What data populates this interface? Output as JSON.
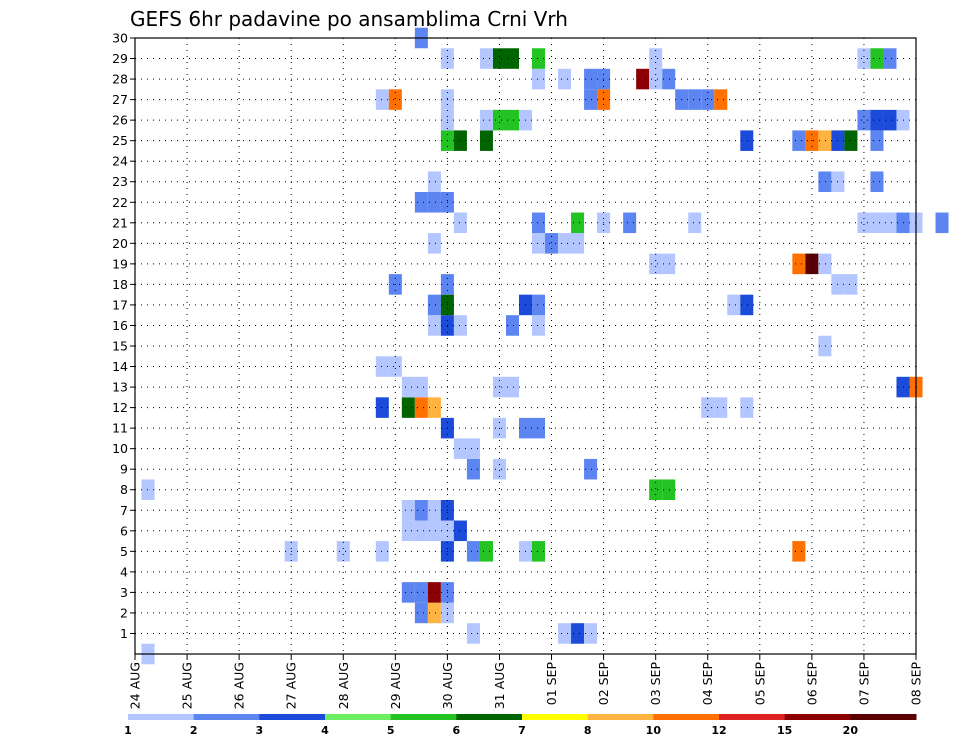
{
  "chart_data": {
    "type": "heatmap",
    "title": "GEFS 6hr padavine po ansamblima Crni Vrh",
    "xlabel": "",
    "ylabel": "",
    "x_tick_labels": [
      "24 AUG",
      "25 AUG",
      "26 AUG",
      "27 AUG",
      "28 AUG",
      "29 AUG",
      "30 AUG",
      "31 AUG",
      "01 SEP",
      "02 SEP",
      "03 SEP",
      "04 SEP",
      "05 SEP",
      "06 SEP",
      "07 SEP",
      "08 SEP"
    ],
    "y_tick_labels": [
      "1",
      "2",
      "3",
      "4",
      "5",
      "6",
      "7",
      "8",
      "9",
      "10",
      "11",
      "12",
      "13",
      "14",
      "15",
      "16",
      "17",
      "18",
      "19",
      "20",
      "21",
      "22",
      "23",
      "24",
      "25",
      "26",
      "27",
      "28",
      "29",
      "30"
    ],
    "xlim_days": [
      0,
      15
    ],
    "ylim_members": [
      0,
      30
    ],
    "grid": true,
    "colorbar": {
      "labels": [
        "1",
        "2",
        "3",
        "4",
        "5",
        "6",
        "7",
        "8",
        "10",
        "12",
        "15",
        "20"
      ],
      "colors": [
        "#b3c6ff",
        "#5c85f2",
        "#1c4bd9",
        "#6cf062",
        "#22c322",
        "#006400",
        "#ffff00",
        "#ffb340",
        "#ff7000",
        "#dd2222",
        "#8b0000",
        "#5a0000"
      ]
    },
    "cells": [
      {
        "m": 0,
        "t": 0.25,
        "v": 1
      },
      {
        "m": 1,
        "t": 6.5,
        "v": 1
      },
      {
        "m": 1,
        "t": 8.25,
        "v": 1
      },
      {
        "m": 1,
        "t": 8.5,
        "v": 3
      },
      {
        "m": 1,
        "t": 8.75,
        "v": 1
      },
      {
        "m": 2,
        "t": 5.5,
        "v": 2
      },
      {
        "m": 2,
        "t": 5.75,
        "v": 8
      },
      {
        "m": 2,
        "t": 6.0,
        "v": 1
      },
      {
        "m": 3,
        "t": 5.25,
        "v": 2
      },
      {
        "m": 3,
        "t": 5.5,
        "v": 2
      },
      {
        "m": 3,
        "t": 5.75,
        "v": 15
      },
      {
        "m": 3,
        "t": 6.0,
        "v": 2
      },
      {
        "m": 5,
        "t": 3.0,
        "v": 1
      },
      {
        "m": 5,
        "t": 4.0,
        "v": 1
      },
      {
        "m": 5,
        "t": 4.75,
        "v": 1
      },
      {
        "m": 5,
        "t": 6.0,
        "v": 3
      },
      {
        "m": 5,
        "t": 6.5,
        "v": 2
      },
      {
        "m": 5,
        "t": 6.75,
        "v": 5
      },
      {
        "m": 5,
        "t": 7.5,
        "v": 1
      },
      {
        "m": 5,
        "t": 7.75,
        "v": 5
      },
      {
        "m": 5,
        "t": 12.75,
        "v": 10
      },
      {
        "m": 6,
        "t": 5.25,
        "v": 1
      },
      {
        "m": 6,
        "t": 5.5,
        "v": 1
      },
      {
        "m": 6,
        "t": 5.75,
        "v": 1
      },
      {
        "m": 6,
        "t": 6.0,
        "v": 1
      },
      {
        "m": 6,
        "t": 6.25,
        "v": 3
      },
      {
        "m": 7,
        "t": 5.25,
        "v": 1
      },
      {
        "m": 7,
        "t": 5.5,
        "v": 2
      },
      {
        "m": 7,
        "t": 5.75,
        "v": 1
      },
      {
        "m": 7,
        "t": 6.0,
        "v": 3
      },
      {
        "m": 8,
        "t": 0.25,
        "v": 1
      },
      {
        "m": 8,
        "t": 10.0,
        "v": 5
      },
      {
        "m": 8,
        "t": 10.25,
        "v": 5
      },
      {
        "m": 9,
        "t": 6.5,
        "v": 2
      },
      {
        "m": 9,
        "t": 7.0,
        "v": 1
      },
      {
        "m": 9,
        "t": 8.75,
        "v": 2
      },
      {
        "m": 10,
        "t": 6.25,
        "v": 1
      },
      {
        "m": 10,
        "t": 6.5,
        "v": 1
      },
      {
        "m": 11,
        "t": 6.0,
        "v": 3
      },
      {
        "m": 11,
        "t": 7.0,
        "v": 1
      },
      {
        "m": 11,
        "t": 7.5,
        "v": 2
      },
      {
        "m": 11,
        "t": 7.75,
        "v": 2
      },
      {
        "m": 12,
        "t": 4.75,
        "v": 3
      },
      {
        "m": 12,
        "t": 5.25,
        "v": 6
      },
      {
        "m": 12,
        "t": 5.5,
        "v": 10
      },
      {
        "m": 12,
        "t": 5.75,
        "v": 8
      },
      {
        "m": 12,
        "t": 11.0,
        "v": 1
      },
      {
        "m": 12,
        "t": 11.25,
        "v": 1
      },
      {
        "m": 12,
        "t": 11.75,
        "v": 1
      },
      {
        "m": 13,
        "t": 5.25,
        "v": 1
      },
      {
        "m": 13,
        "t": 5.5,
        "v": 1
      },
      {
        "m": 13,
        "t": 7.0,
        "v": 1
      },
      {
        "m": 13,
        "t": 7.25,
        "v": 1
      },
      {
        "m": 13,
        "t": 14.75,
        "v": 3
      },
      {
        "m": 13,
        "t": 15.0,
        "v": 10
      },
      {
        "m": 14,
        "t": 4.75,
        "v": 1
      },
      {
        "m": 14,
        "t": 5.0,
        "v": 1
      },
      {
        "m": 15,
        "t": 13.25,
        "v": 1
      },
      {
        "m": 16,
        "t": 5.75,
        "v": 1
      },
      {
        "m": 16,
        "t": 6.0,
        "v": 3
      },
      {
        "m": 16,
        "t": 6.25,
        "v": 1
      },
      {
        "m": 16,
        "t": 7.25,
        "v": 2
      },
      {
        "m": 16,
        "t": 7.75,
        "v": 1
      },
      {
        "m": 17,
        "t": 5.75,
        "v": 2
      },
      {
        "m": 17,
        "t": 6.0,
        "v": 6
      },
      {
        "m": 17,
        "t": 7.5,
        "v": 3
      },
      {
        "m": 17,
        "t": 7.75,
        "v": 2
      },
      {
        "m": 17,
        "t": 11.5,
        "v": 1
      },
      {
        "m": 17,
        "t": 11.75,
        "v": 3
      },
      {
        "m": 18,
        "t": 5.0,
        "v": 2
      },
      {
        "m": 18,
        "t": 6.0,
        "v": 2
      },
      {
        "m": 18,
        "t": 13.5,
        "v": 1
      },
      {
        "m": 18,
        "t": 13.75,
        "v": 1
      },
      {
        "m": 19,
        "t": 10.0,
        "v": 1
      },
      {
        "m": 19,
        "t": 10.25,
        "v": 1
      },
      {
        "m": 19,
        "t": 12.75,
        "v": 10
      },
      {
        "m": 19,
        "t": 13.0,
        "v": 20
      },
      {
        "m": 19,
        "t": 13.25,
        "v": 1
      },
      {
        "m": 20,
        "t": 5.75,
        "v": 1
      },
      {
        "m": 20,
        "t": 7.75,
        "v": 1
      },
      {
        "m": 20,
        "t": 8.0,
        "v": 2
      },
      {
        "m": 20,
        "t": 8.25,
        "v": 1
      },
      {
        "m": 20,
        "t": 8.5,
        "v": 1
      },
      {
        "m": 21,
        "t": 6.25,
        "v": 1
      },
      {
        "m": 21,
        "t": 7.75,
        "v": 2
      },
      {
        "m": 21,
        "t": 8.5,
        "v": 5
      },
      {
        "m": 21,
        "t": 9.0,
        "v": 1
      },
      {
        "m": 21,
        "t": 9.5,
        "v": 2
      },
      {
        "m": 21,
        "t": 10.75,
        "v": 1
      },
      {
        "m": 21,
        "t": 14.0,
        "v": 1
      },
      {
        "m": 21,
        "t": 14.25,
        "v": 1
      },
      {
        "m": 21,
        "t": 14.5,
        "v": 1
      },
      {
        "m": 21,
        "t": 14.75,
        "v": 2
      },
      {
        "m": 21,
        "t": 15.0,
        "v": 1
      },
      {
        "m": 21,
        "t": 15.5,
        "v": 2
      },
      {
        "m": 22,
        "t": 5.5,
        "v": 2
      },
      {
        "m": 22,
        "t": 5.75,
        "v": 2
      },
      {
        "m": 22,
        "t": 6.0,
        "v": 2
      },
      {
        "m": 23,
        "t": 5.75,
        "v": 1
      },
      {
        "m": 23,
        "t": 13.25,
        "v": 2
      },
      {
        "m": 23,
        "t": 13.5,
        "v": 1
      },
      {
        "m": 23,
        "t": 14.25,
        "v": 2
      },
      {
        "m": 25,
        "t": 6.0,
        "v": 5
      },
      {
        "m": 25,
        "t": 6.25,
        "v": 6
      },
      {
        "m": 25,
        "t": 6.75,
        "v": 6
      },
      {
        "m": 25,
        "t": 11.75,
        "v": 3
      },
      {
        "m": 25,
        "t": 12.75,
        "v": 2
      },
      {
        "m": 25,
        "t": 13.0,
        "v": 10
      },
      {
        "m": 25,
        "t": 13.25,
        "v": 8
      },
      {
        "m": 25,
        "t": 13.5,
        "v": 3
      },
      {
        "m": 25,
        "t": 13.75,
        "v": 6
      },
      {
        "m": 25,
        "t": 14.25,
        "v": 2
      },
      {
        "m": 26,
        "t": 6.0,
        "v": 1
      },
      {
        "m": 26,
        "t": 6.75,
        "v": 1
      },
      {
        "m": 26,
        "t": 7.0,
        "v": 5
      },
      {
        "m": 26,
        "t": 7.25,
        "v": 5
      },
      {
        "m": 26,
        "t": 7.5,
        "v": 1
      },
      {
        "m": 26,
        "t": 14.0,
        "v": 2
      },
      {
        "m": 26,
        "t": 14.25,
        "v": 3
      },
      {
        "m": 26,
        "t": 14.5,
        "v": 3
      },
      {
        "m": 26,
        "t": 14.75,
        "v": 1
      },
      {
        "m": 27,
        "t": 4.75,
        "v": 1
      },
      {
        "m": 27,
        "t": 5.0,
        "v": 10
      },
      {
        "m": 27,
        "t": 6.0,
        "v": 1
      },
      {
        "m": 27,
        "t": 8.75,
        "v": 2
      },
      {
        "m": 27,
        "t": 9.0,
        "v": 10
      },
      {
        "m": 27,
        "t": 10.5,
        "v": 2
      },
      {
        "m": 27,
        "t": 10.75,
        "v": 2
      },
      {
        "m": 27,
        "t": 11.0,
        "v": 2
      },
      {
        "m": 27,
        "t": 11.25,
        "v": 10
      },
      {
        "m": 28,
        "t": 7.75,
        "v": 1
      },
      {
        "m": 28,
        "t": 8.25,
        "v": 1
      },
      {
        "m": 28,
        "t": 8.75,
        "v": 2
      },
      {
        "m": 28,
        "t": 9.0,
        "v": 2
      },
      {
        "m": 28,
        "t": 9.75,
        "v": 15
      },
      {
        "m": 28,
        "t": 10.0,
        "v": 1
      },
      {
        "m": 28,
        "t": 10.25,
        "v": 2
      },
      {
        "m": 29,
        "t": 6.0,
        "v": 1
      },
      {
        "m": 29,
        "t": 6.75,
        "v": 1
      },
      {
        "m": 29,
        "t": 7.0,
        "v": 6
      },
      {
        "m": 29,
        "t": 7.25,
        "v": 6
      },
      {
        "m": 29,
        "t": 7.75,
        "v": 5
      },
      {
        "m": 29,
        "t": 10.0,
        "v": 1
      },
      {
        "m": 29,
        "t": 14.0,
        "v": 1
      },
      {
        "m": 29,
        "t": 14.25,
        "v": 5
      },
      {
        "m": 29,
        "t": 14.5,
        "v": 2
      },
      {
        "m": 30,
        "t": 5.5,
        "v": 2
      }
    ]
  }
}
